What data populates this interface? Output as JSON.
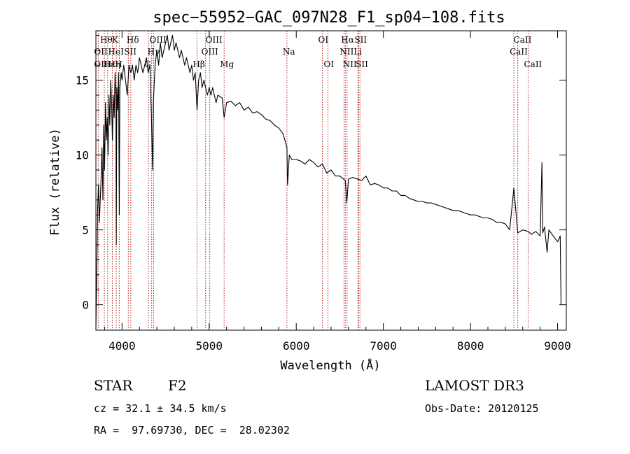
{
  "chart_data": {
    "type": "line",
    "title": "spec−55952−GAC_097N28_F1_sp04−108.fits",
    "xlabel": "Wavelength (Å)",
    "ylabel": "Flux (relative)",
    "xlim": [
      3700,
      9100
    ],
    "ylim": [
      -1.7,
      18.3
    ],
    "x_ticks": [
      4000,
      5000,
      6000,
      7000,
      8000,
      9000
    ],
    "x_tick_labels": [
      "4000",
      "5000",
      "6000",
      "7000",
      "8000",
      "9000"
    ],
    "y_ticks": [
      0,
      5,
      10,
      15
    ],
    "y_tick_labels": [
      "0",
      "5",
      "10",
      "15"
    ],
    "grid": false,
    "series": [
      {
        "name": "spectrum",
        "x": [
          3700,
          3710,
          3720,
          3730,
          3740,
          3750,
          3760,
          3770,
          3780,
          3790,
          3800,
          3810,
          3820,
          3830,
          3840,
          3850,
          3860,
          3870,
          3880,
          3890,
          3900,
          3910,
          3920,
          3930,
          3934,
          3940,
          3950,
          3960,
          3968,
          3975,
          3990,
          4000,
          4020,
          4040,
          4060,
          4080,
          4101,
          4120,
          4140,
          4160,
          4180,
          4200,
          4220,
          4240,
          4260,
          4280,
          4300,
          4320,
          4340,
          4350,
          4360,
          4380,
          4400,
          4420,
          4440,
          4460,
          4480,
          4500,
          4520,
          4540,
          4560,
          4580,
          4600,
          4620,
          4640,
          4660,
          4680,
          4700,
          4720,
          4740,
          4760,
          4780,
          4800,
          4820,
          4840,
          4861,
          4880,
          4900,
          4920,
          4940,
          4960,
          4980,
          5000,
          5020,
          5040,
          5060,
          5080,
          5100,
          5150,
          5172,
          5200,
          5250,
          5300,
          5350,
          5400,
          5450,
          5500,
          5550,
          5600,
          5650,
          5700,
          5750,
          5800,
          5850,
          5893,
          5900,
          5920,
          5950,
          6000,
          6050,
          6100,
          6150,
          6200,
          6250,
          6300,
          6350,
          6400,
          6450,
          6500,
          6563,
          6580,
          6600,
          6650,
          6700,
          6750,
          6800,
          6850,
          6900,
          6950,
          7000,
          7050,
          7100,
          7150,
          7200,
          7250,
          7300,
          7350,
          7400,
          7450,
          7500,
          7550,
          7600,
          7650,
          7700,
          7750,
          7800,
          7850,
          7900,
          7950,
          8000,
          8050,
          8100,
          8150,
          8200,
          8250,
          8300,
          8350,
          8400,
          8450,
          8498,
          8542,
          8600,
          8662,
          8700,
          8750,
          8800,
          8820,
          8830,
          8850,
          8880,
          8900,
          8950,
          9000,
          9030,
          9040
        ],
        "y": [
          -1.6,
          2.0,
          6.5,
          8.0,
          5.5,
          7.0,
          8.5,
          10.5,
          7.0,
          12.0,
          9.0,
          13.5,
          11.0,
          12.5,
          10.0,
          14.0,
          12.0,
          15.0,
          13.5,
          11.0,
          14.0,
          12.5,
          15.5,
          14.0,
          4.0,
          14.5,
          13.0,
          15.5,
          6.0,
          14.5,
          15.5,
          15.0,
          16.0,
          15.0,
          14.0,
          16.0,
          15.5,
          16.0,
          15.0,
          16.0,
          15.5,
          16.5,
          16.0,
          15.5,
          16.0,
          16.5,
          15.5,
          16.0,
          12.0,
          9.0,
          13.5,
          16.0,
          17.0,
          16.0,
          17.5,
          16.5,
          17.0,
          17.5,
          18.0,
          17.0,
          17.5,
          18.0,
          17.0,
          17.5,
          17.0,
          16.5,
          17.0,
          16.5,
          16.0,
          16.5,
          16.0,
          15.5,
          16.0,
          15.0,
          15.5,
          13.0,
          15.0,
          15.5,
          14.5,
          15.0,
          14.5,
          14.0,
          14.5,
          14.0,
          14.5,
          14.0,
          13.5,
          14.0,
          13.8,
          12.5,
          13.5,
          13.6,
          13.3,
          13.5,
          13.0,
          13.2,
          12.8,
          12.9,
          12.7,
          12.4,
          12.3,
          12.0,
          11.8,
          11.4,
          10.5,
          8.0,
          10.0,
          9.7,
          9.7,
          9.6,
          9.4,
          9.7,
          9.5,
          9.2,
          9.4,
          8.8,
          9.0,
          8.6,
          8.6,
          8.3,
          6.8,
          8.4,
          8.5,
          8.4,
          8.3,
          8.6,
          8.0,
          8.1,
          8.0,
          7.8,
          7.8,
          7.6,
          7.6,
          7.3,
          7.3,
          7.1,
          7.0,
          6.9,
          6.9,
          6.8,
          6.8,
          6.7,
          6.6,
          6.5,
          6.4,
          6.3,
          6.3,
          6.2,
          6.1,
          6.0,
          6.0,
          5.9,
          5.8,
          5.8,
          5.7,
          5.5,
          5.5,
          5.4,
          5.0,
          7.8,
          4.8,
          5.0,
          4.9,
          4.7,
          4.9,
          4.6,
          9.5,
          4.8,
          5.2,
          3.5,
          5.0,
          4.6,
          4.2,
          4.6,
          0.0
        ]
      }
    ],
    "line_markers": [
      {
        "label": "Hθ",
        "x": 3797,
        "row": 1
      },
      {
        "label": "K",
        "x": 3934,
        "row": 1
      },
      {
        "label": "Hδ",
        "x": 4101,
        "row": 1
      },
      {
        "label": "OIII",
        "x": 4363,
        "row": 1
      },
      {
        "label": "OIII",
        "x": 5007,
        "row": 1
      },
      {
        "label": "OI",
        "x": 6300,
        "row": 1
      },
      {
        "label": "Hα",
        "x": 6563,
        "row": 1
      },
      {
        "label": "SII",
        "x": 6717,
        "row": 1
      },
      {
        "label": "CaII",
        "x": 8542,
        "row": 1
      },
      {
        "label": "OII",
        "x": 3727,
        "row": 2
      },
      {
        "label": "HeI",
        "x": 3889,
        "row": 2
      },
      {
        "label": "SII",
        "x": 4072,
        "row": 2
      },
      {
        "label": "Hγ",
        "x": 4340,
        "row": 2
      },
      {
        "label": "OIII",
        "x": 4959,
        "row": 2
      },
      {
        "label": "Na",
        "x": 5893,
        "row": 2
      },
      {
        "label": "NII",
        "x": 6548,
        "row": 2
      },
      {
        "label": "Li",
        "x": 6708,
        "row": 2
      },
      {
        "label": "CaII",
        "x": 8498,
        "row": 2
      },
      {
        "label": "OII",
        "x": 3727,
        "row": 3
      },
      {
        "label": "Hε",
        "x": 3835,
        "row": 3
      },
      {
        "label": "Hη",
        "x": 3889,
        "row": 3
      },
      {
        "label": "H",
        "x": 3968,
        "row": 3
      },
      {
        "label": "G",
        "x": 4304,
        "row": 3
      },
      {
        "label": "Hβ",
        "x": 4861,
        "row": 3
      },
      {
        "label": "Mg",
        "x": 5172,
        "row": 3
      },
      {
        "label": "OI",
        "x": 6364,
        "row": 3
      },
      {
        "label": "NII",
        "x": 6583,
        "row": 3
      },
      {
        "label": "SII",
        "x": 6731,
        "row": 3
      },
      {
        "label": "CaII",
        "x": 8662,
        "row": 3
      }
    ]
  },
  "info": {
    "class_label": "STAR",
    "subclass": "F2",
    "survey": "LAMOST DR3",
    "cz": "cz = 32.1 ± 34.5 km/s",
    "obs_date": "Obs-Date: 20120125",
    "radec": "RA =  97.69730, DEC =  28.02302"
  }
}
